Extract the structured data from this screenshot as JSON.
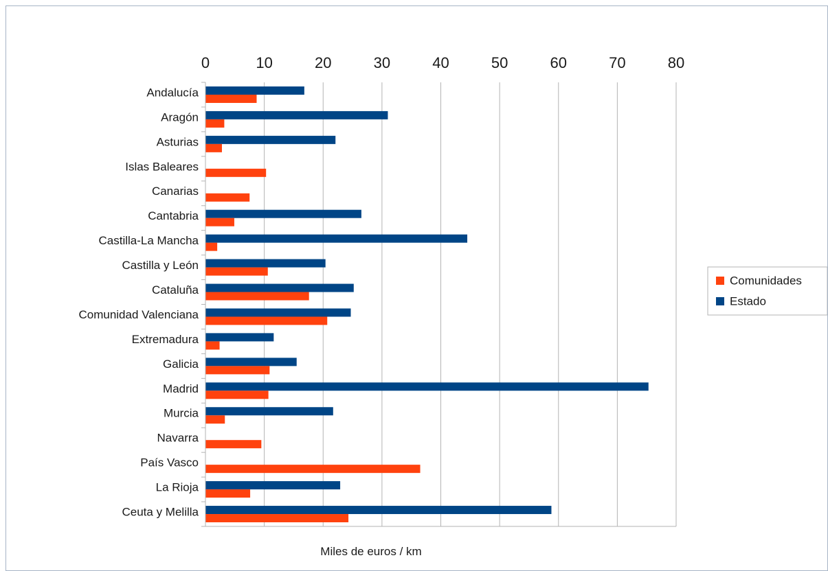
{
  "chart_data": {
    "type": "bar",
    "orientation": "horizontal",
    "categories": [
      "Andalucía",
      "Aragón",
      "Asturias",
      "Islas Baleares",
      "Canarias",
      "Cantabria",
      "Castilla-La Mancha",
      "Castilla y León",
      "Cataluña",
      "Comunidad Valenciana",
      "Extremadura",
      "Galicia",
      "Madrid",
      "Murcia",
      "Navarra",
      "País Vasco",
      "La Rioja",
      "Ceuta y Melilla"
    ],
    "series": [
      {
        "name": "Comunidades",
        "color": "#ff420e",
        "values": [
          8.7,
          3.2,
          2.8,
          10.3,
          7.5,
          4.9,
          2.0,
          10.6,
          17.6,
          20.7,
          2.4,
          10.9,
          10.7,
          3.3,
          9.5,
          36.5,
          7.6,
          24.3
        ]
      },
      {
        "name": "Estado",
        "color": "#004586",
        "values": [
          16.8,
          31.0,
          22.1,
          0,
          0,
          26.5,
          44.5,
          20.4,
          25.2,
          24.7,
          11.6,
          15.5,
          75.3,
          21.7,
          0,
          0,
          22.9,
          58.8
        ]
      }
    ],
    "xlabel": "Miles de euros / km",
    "ylabel": "",
    "xlim": [
      0,
      80
    ],
    "xticks": [
      0,
      10,
      20,
      30,
      40,
      50,
      60,
      70,
      80
    ],
    "grid": true,
    "legend_position": "right"
  }
}
